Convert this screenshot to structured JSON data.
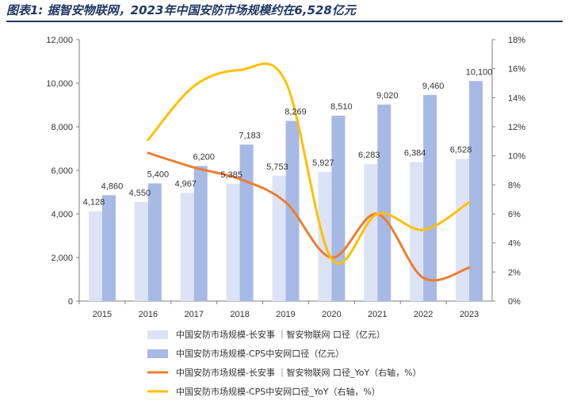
{
  "figure_title": "图表1: 据智安物联网，2023年中国安防市场规模约在6,528亿元",
  "colors": {
    "title": "#1f3864",
    "bar_series_1": "#dce3f4",
    "bar_series_2": "#a7b9e5",
    "line_series_1": "#ed7d31",
    "line_series_2": "#ffc000"
  },
  "chart_data": {
    "type": "bar",
    "categories": [
      "2015",
      "2016",
      "2017",
      "2018",
      "2019",
      "2020",
      "2021",
      "2022",
      "2023"
    ],
    "y_left": {
      "ylim": [
        0,
        12000
      ],
      "ticks": [
        "0",
        "2,000",
        "4,000",
        "6,000",
        "8,000",
        "10,000",
        "12,000"
      ]
    },
    "y_right": {
      "ylim": [
        0,
        18
      ],
      "ticks": [
        "0%",
        "2%",
        "4%",
        "6%",
        "8%",
        "10%",
        "12%",
        "14%",
        "16%",
        "18%"
      ]
    },
    "series": [
      {
        "name": "中国安防市场规模-长安事 ｜智安物联网 口径（亿元）",
        "kind": "bar",
        "axis": "left",
        "values": [
          4128,
          4550,
          4967,
          5385,
          5753,
          5927,
          6283,
          6384,
          6528
        ],
        "labels": [
          "4,128",
          "4,550",
          "4,967",
          "5,385",
          "5,753",
          "5,927",
          "6,283",
          "6,384",
          "6,528"
        ]
      },
      {
        "name": "中国安防市场规模-CPS中安网口径（亿元）",
        "kind": "bar",
        "axis": "left",
        "values": [
          4860,
          5400,
          6200,
          7183,
          8269,
          8510,
          9020,
          9460,
          10100
        ],
        "labels": [
          "4,860",
          "5,400",
          "6,200",
          "7,183",
          "8,269",
          "8,510",
          "9,020",
          "9,460",
          "10,100"
        ]
      },
      {
        "name": "中国安防市场规模-长安事 ｜智安物联网 口径_YoY（右轴，%）",
        "kind": "line",
        "axis": "right",
        "values": [
          null,
          10.2,
          9.2,
          8.4,
          6.8,
          3.0,
          6.0,
          1.6,
          2.3
        ]
      },
      {
        "name": "中国安防市场规模-CPS中安网口径_YoY（右轴，%）",
        "kind": "line",
        "axis": "right",
        "values": [
          null,
          11.1,
          14.8,
          15.9,
          15.1,
          2.9,
          6.0,
          4.9,
          6.8
        ]
      }
    ],
    "grid": false,
    "legend": "bottom"
  }
}
